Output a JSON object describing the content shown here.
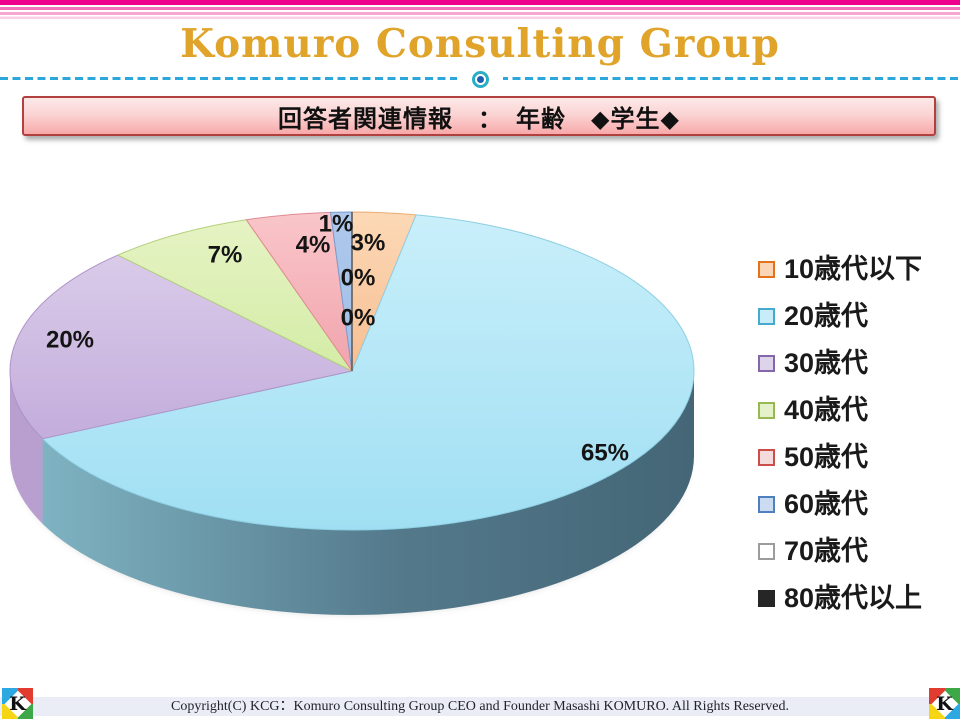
{
  "header": {
    "title": "Komuro Consulting Group",
    "title_color": "#E0A42B",
    "stripe_colors": [
      "#EC008C",
      "#F173B8",
      "#F7A6CF",
      "#FBD0E6"
    ],
    "divider_color": "#2BA7DC",
    "ornament_icon": "bullseye-icon"
  },
  "banner": {
    "title": "回答者関連情報　：　年齢　◆学生◆",
    "border_color": "#B0413E",
    "fill_top": "#FCE9E9",
    "fill_bottom": "#F8A9A9"
  },
  "chart_data": {
    "type": "pie",
    "is_3d": true,
    "title": "",
    "legend_position": "right",
    "direction": "clockwise",
    "start_angle_deg": 0,
    "categories": [
      "10歳代以下",
      "20歳代",
      "30歳代",
      "40歳代",
      "50歳代",
      "60歳代",
      "70歳代",
      "80歳代以上"
    ],
    "values": [
      3,
      65,
      20,
      7,
      4,
      1,
      0,
      0
    ],
    "value_labels": [
      "3%",
      "65%",
      "20%",
      "7%",
      "4%",
      "1%",
      "0%",
      "0%"
    ],
    "slice_fill_top": [
      "#FCD9B6",
      "#C9EFFA",
      "#DACBE9",
      "#E6F3C4",
      "#F9C6CA",
      "#AEC8EC",
      "#FFFFFF",
      "#3A3A3A"
    ],
    "slice_fill_bottom": [
      "#F7BE92",
      "#A0DFF3",
      "#C3ADDC",
      "#D3ECA6",
      "#F1A4AC",
      "#A3BFE6",
      "#F2F2F2",
      "#262626"
    ],
    "slice_stroke": [
      "#ECAD74",
      "#8ECFE2",
      "#AD94C6",
      "#B5D07E",
      "#E08A92",
      "#7A9CCB",
      "#9C9C9C",
      "#1A1A1A"
    ],
    "wall_fill": [
      "#E0A070",
      "url(#sideGrad)",
      "#B89FD0",
      "#B9D27E",
      "#D98C94",
      "#7E9FCC",
      "#BBBBBB",
      "#333333"
    ],
    "side_gradient": [
      "#7FB3C2",
      "#53798B",
      "#446676"
    ],
    "legend_swatch_fill": [
      "#FBD5B5",
      "#C9EDF8",
      "#DDD3EA",
      "#E4F1C9",
      "#F5DCDC",
      "#CBDCF2",
      "#FFFFFF",
      "#262626"
    ],
    "legend_swatch_border": [
      "#E2721F",
      "#45AACD",
      "#8467A8",
      "#97B954",
      "#CC4E4B",
      "#4E80C0",
      "#9C9C9C",
      "#262626"
    ]
  },
  "footer": {
    "copyright": "Copyright(C)  KCG：Komuro Consulting Group  CEO and Founder  Masashi KOMURO. All Rights Reserved.",
    "logo_letter": "K",
    "band_color": "#EAEDF6"
  }
}
